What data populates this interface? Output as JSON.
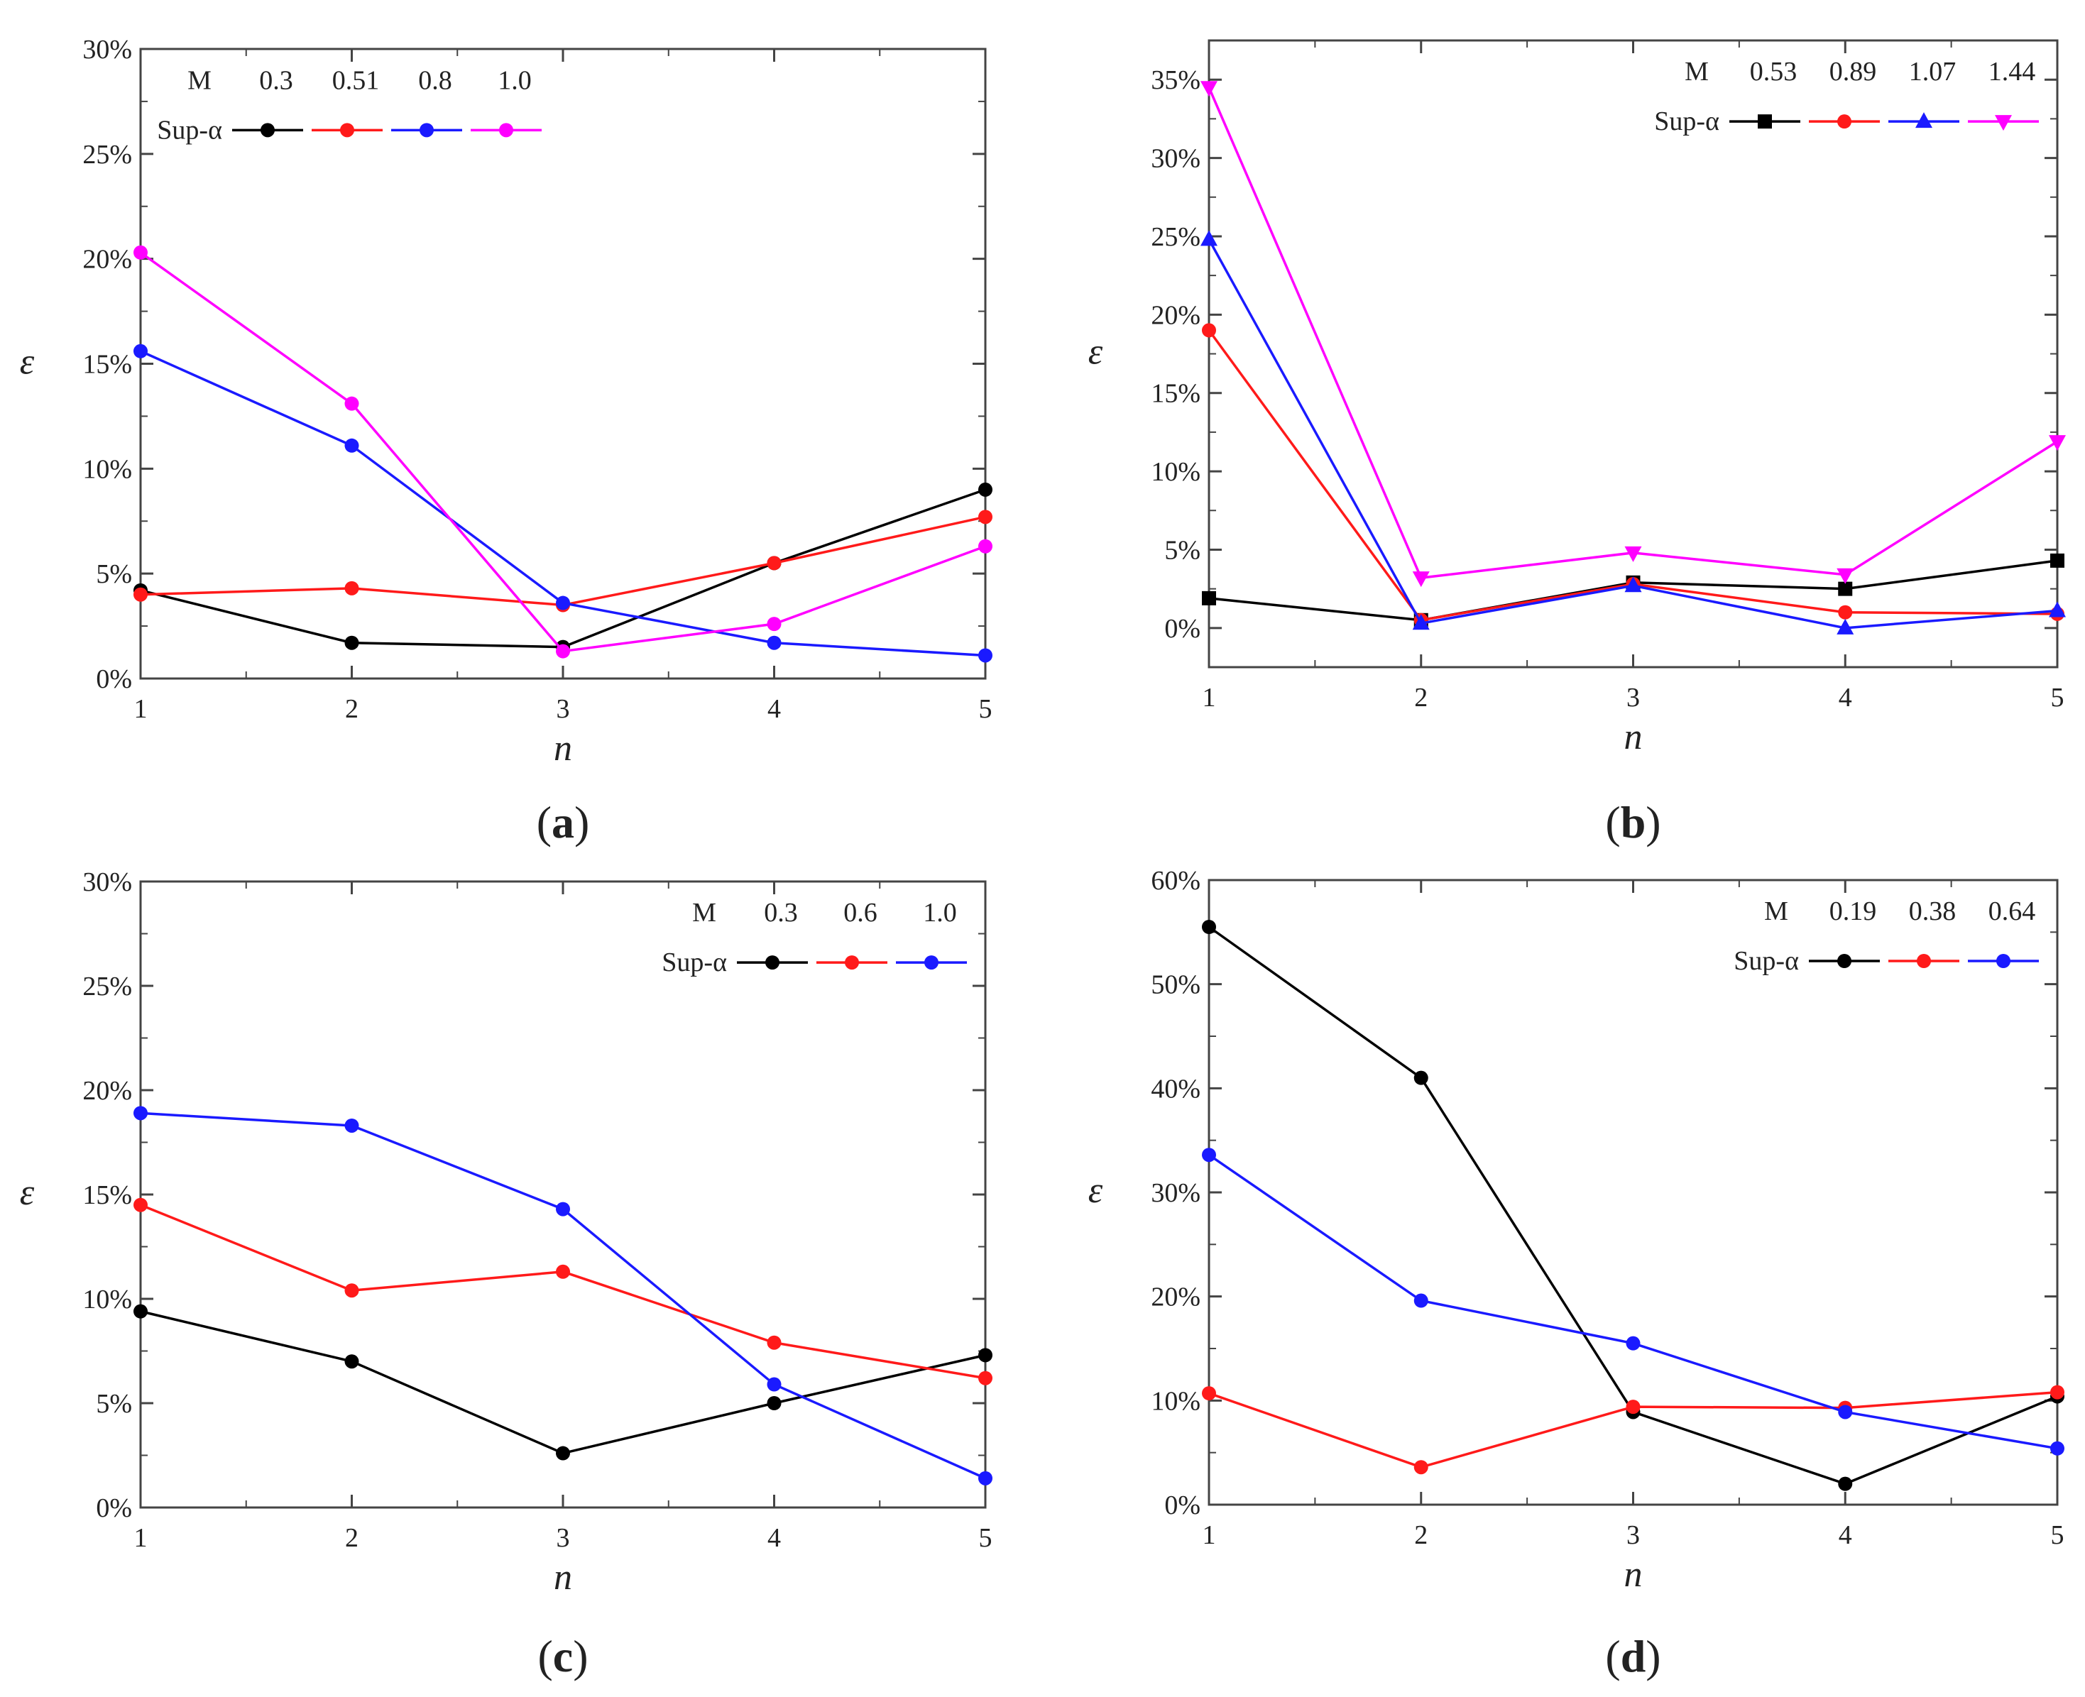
{
  "chart_data": [
    {
      "panel": "a",
      "type": "line",
      "xlabel": "n",
      "ylabel": "ε",
      "x": [
        1,
        2,
        3,
        4,
        5
      ],
      "xticks": [
        1,
        2,
        3,
        4,
        5
      ],
      "ylim": [
        0,
        30
      ],
      "yticks": [
        0,
        5,
        10,
        15,
        20,
        25,
        30
      ],
      "ytick_labels": [
        "0%",
        "5%",
        "10%",
        "15%",
        "20%",
        "25%",
        "30%"
      ],
      "legend_header": "M",
      "legend_row_label": "Sup-α",
      "legend_position": "top-left",
      "series": [
        {
          "name": "0.3",
          "color": "#000000",
          "marker": "circle",
          "values": [
            4.2,
            1.7,
            1.5,
            5.5,
            9.0
          ]
        },
        {
          "name": "0.51",
          "color": "#ff1a1a",
          "marker": "circle",
          "values": [
            4.0,
            4.3,
            3.5,
            5.5,
            7.7
          ]
        },
        {
          "name": "0.8",
          "color": "#1a1aff",
          "marker": "circle",
          "values": [
            15.6,
            11.1,
            3.6,
            1.7,
            1.1
          ]
        },
        {
          "name": "1.0",
          "color": "#ff00ff",
          "marker": "circle",
          "values": [
            20.3,
            13.1,
            1.3,
            2.6,
            6.3
          ]
        }
      ]
    },
    {
      "panel": "b",
      "type": "line",
      "xlabel": "n",
      "ylabel": "ε",
      "x": [
        1,
        2,
        3,
        4,
        5
      ],
      "xticks": [
        1,
        2,
        3,
        4,
        5
      ],
      "ylim": [
        -2.5,
        37.5
      ],
      "yticks": [
        0,
        5,
        10,
        15,
        20,
        25,
        30,
        35
      ],
      "ytick_labels": [
        "0%",
        "5%",
        "10%",
        "15%",
        "20%",
        "25%",
        "30%",
        "35%"
      ],
      "legend_header": "M",
      "legend_row_label": "Sup-α",
      "legend_position": "top-right",
      "series": [
        {
          "name": "0.53",
          "color": "#000000",
          "marker": "square",
          "values": [
            1.9,
            0.5,
            2.9,
            2.5,
            4.3
          ]
        },
        {
          "name": "0.89",
          "color": "#ff1a1a",
          "marker": "circle",
          "values": [
            19.0,
            0.5,
            2.8,
            1.0,
            0.9
          ]
        },
        {
          "name": "1.07",
          "color": "#1a1aff",
          "marker": "triangle-up",
          "values": [
            24.8,
            0.3,
            2.7,
            0.0,
            1.1
          ]
        },
        {
          "name": "1.44",
          "color": "#ff00ff",
          "marker": "triangle-down",
          "values": [
            34.5,
            3.2,
            4.8,
            3.4,
            11.9
          ]
        }
      ]
    },
    {
      "panel": "c",
      "type": "line",
      "xlabel": "n",
      "ylabel": "ε",
      "x": [
        1,
        2,
        3,
        4,
        5
      ],
      "xticks": [
        1,
        2,
        3,
        4,
        5
      ],
      "ylim": [
        0,
        30
      ],
      "yticks": [
        0,
        5,
        10,
        15,
        20,
        25,
        30
      ],
      "ytick_labels": [
        "0%",
        "5%",
        "10%",
        "15%",
        "20%",
        "25%",
        "30%"
      ],
      "legend_header": "M",
      "legend_row_label": "Sup-α",
      "legend_position": "top-right",
      "series": [
        {
          "name": "0.3",
          "color": "#000000",
          "marker": "circle",
          "values": [
            9.4,
            7.0,
            2.6,
            5.0,
            7.3
          ]
        },
        {
          "name": "0.6",
          "color": "#ff1a1a",
          "marker": "circle",
          "values": [
            14.5,
            10.4,
            11.3,
            7.9,
            6.2
          ]
        },
        {
          "name": "1.0",
          "color": "#1a1aff",
          "marker": "circle",
          "values": [
            18.9,
            18.3,
            14.3,
            5.9,
            1.4
          ]
        }
      ]
    },
    {
      "panel": "d",
      "type": "line",
      "xlabel": "n",
      "ylabel": "ε",
      "x": [
        1,
        2,
        3,
        4,
        5
      ],
      "xticks": [
        1,
        2,
        3,
        4,
        5
      ],
      "ylim": [
        0,
        60
      ],
      "yticks": [
        0,
        10,
        20,
        30,
        40,
        50,
        60
      ],
      "ytick_labels": [
        "0%",
        "10%",
        "20%",
        "30%",
        "40%",
        "50%",
        "60%"
      ],
      "legend_header": "M",
      "legend_row_label": "Sup-α",
      "legend_position": "top-right",
      "series": [
        {
          "name": "0.19",
          "color": "#000000",
          "marker": "circle",
          "values": [
            55.5,
            41.0,
            8.9,
            2.0,
            10.4
          ]
        },
        {
          "name": "0.38",
          "color": "#ff1a1a",
          "marker": "circle",
          "values": [
            10.7,
            3.6,
            9.4,
            9.3,
            10.8
          ]
        },
        {
          "name": "0.64",
          "color": "#1a1aff",
          "marker": "circle",
          "values": [
            33.6,
            19.6,
            15.5,
            8.9,
            5.4
          ]
        }
      ]
    }
  ]
}
